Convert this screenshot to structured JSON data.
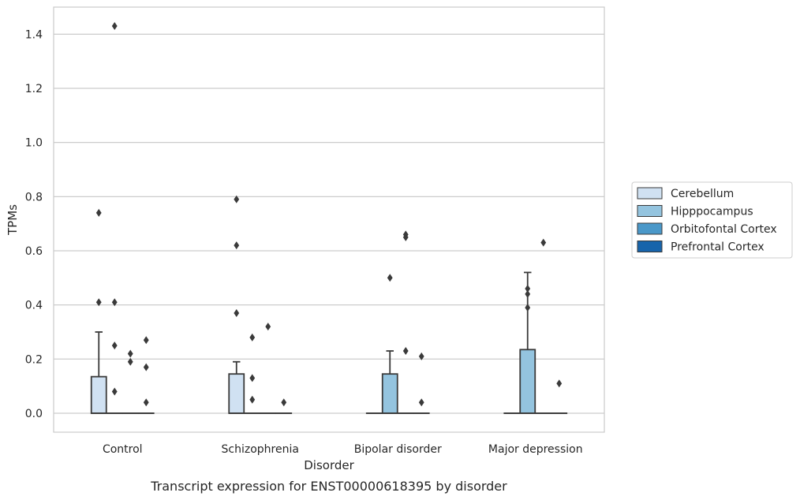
{
  "chart_data": {
    "type": "box",
    "caption": "Transcript expression for ENST00000618395 by disorder",
    "xlabel": "Disorder",
    "ylabel": "TPMs",
    "ylim": [
      -0.07,
      1.5
    ],
    "yticks": [
      "0.0",
      "0.2",
      "0.4",
      "0.6",
      "0.8",
      "1.0",
      "1.2",
      "1.4"
    ],
    "grid": true,
    "legend_position": "right",
    "categories": [
      "Control",
      "Schizophrenia",
      "Bipolar disorder",
      "Major depression"
    ],
    "series": [
      {
        "name": "Cerebellum",
        "color": "#d0e1f2",
        "boxes": [
          {
            "q1": 0.0,
            "median": 0.0,
            "q3": 0.135,
            "whisker_low": 0.0,
            "whisker_high": 0.3,
            "outliers": [
              0.74,
              0.41
            ]
          },
          {
            "q1": 0.0,
            "median": 0.0,
            "q3": 0.145,
            "whisker_low": 0.0,
            "whisker_high": 0.19,
            "outliers": [
              0.79,
              0.62,
              0.37
            ]
          },
          {
            "q1": 0.0,
            "median": 0.0,
            "q3": 0.0,
            "whisker_low": 0.0,
            "whisker_high": 0.0,
            "outliers": []
          },
          {
            "q1": 0.0,
            "median": 0.0,
            "q3": 0.0,
            "whisker_low": 0.0,
            "whisker_high": 0.0,
            "outliers": []
          }
        ]
      },
      {
        "name": "Hipppocampus",
        "color": "#94c4df",
        "boxes": [
          {
            "q1": 0.0,
            "median": 0.0,
            "q3": 0.0,
            "whisker_low": 0.0,
            "whisker_high": 0.0,
            "outliers": [
              1.43,
              0.41,
              0.25,
              0.08
            ]
          },
          {
            "q1": 0.0,
            "median": 0.0,
            "q3": 0.0,
            "whisker_low": 0.0,
            "whisker_high": 0.0,
            "outliers": [
              0.28,
              0.13,
              0.05
            ]
          },
          {
            "q1": 0.0,
            "median": 0.0,
            "q3": 0.145,
            "whisker_low": 0.0,
            "whisker_high": 0.23,
            "outliers": [
              0.5
            ]
          },
          {
            "q1": 0.0,
            "median": 0.0,
            "q3": 0.235,
            "whisker_low": 0.0,
            "whisker_high": 0.52,
            "outliers": [
              0.46,
              0.44,
              0.39
            ]
          }
        ]
      },
      {
        "name": "Orbitofontal Cortex",
        "color": "#4a98c9",
        "boxes": [
          {
            "q1": 0.0,
            "median": 0.0,
            "q3": 0.0,
            "whisker_low": 0.0,
            "whisker_high": 0.0,
            "outliers": [
              0.22,
              0.19
            ]
          },
          {
            "q1": 0.0,
            "median": 0.0,
            "q3": 0.0,
            "whisker_low": 0.0,
            "whisker_high": 0.0,
            "outliers": [
              0.32
            ]
          },
          {
            "q1": 0.0,
            "median": 0.0,
            "q3": 0.0,
            "whisker_low": 0.0,
            "whisker_high": 0.0,
            "outliers": [
              0.66,
              0.65,
              0.23
            ]
          },
          {
            "q1": 0.0,
            "median": 0.0,
            "q3": 0.0,
            "whisker_low": 0.0,
            "whisker_high": 0.0,
            "outliers": [
              0.63
            ]
          }
        ]
      },
      {
        "name": "Prefrontal Cortex",
        "color": "#1764ab",
        "boxes": [
          {
            "q1": 0.0,
            "median": 0.0,
            "q3": 0.0,
            "whisker_low": 0.0,
            "whisker_high": 0.0,
            "outliers": [
              0.27,
              0.17,
              0.04
            ]
          },
          {
            "q1": 0.0,
            "median": 0.0,
            "q3": 0.0,
            "whisker_low": 0.0,
            "whisker_high": 0.0,
            "outliers": [
              0.04
            ]
          },
          {
            "q1": 0.0,
            "median": 0.0,
            "q3": 0.0,
            "whisker_low": 0.0,
            "whisker_high": 0.0,
            "outliers": [
              0.21,
              0.04
            ]
          },
          {
            "q1": 0.0,
            "median": 0.0,
            "q3": 0.0,
            "whisker_low": 0.0,
            "whisker_high": 0.0,
            "outliers": [
              0.11
            ]
          }
        ]
      }
    ]
  }
}
